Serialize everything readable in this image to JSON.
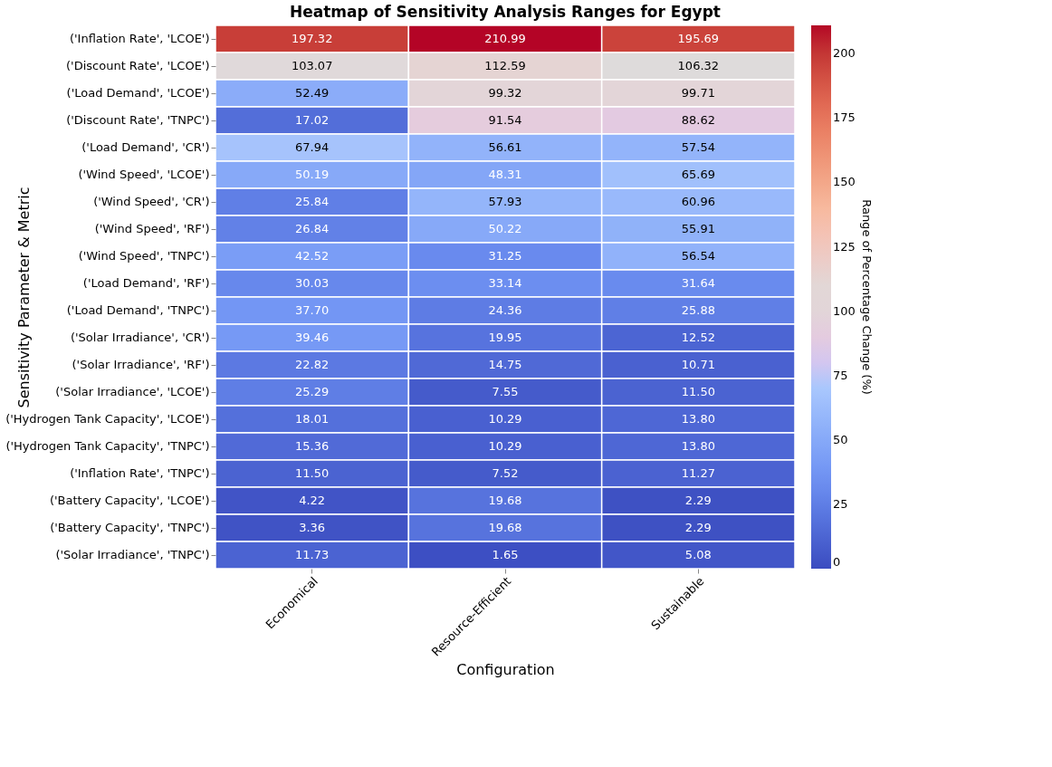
{
  "chart_data": {
    "type": "heatmap",
    "title": "Heatmap of Sensitivity Analysis Ranges for Egypt",
    "xlabel": "Configuration",
    "ylabel": "Sensitivity Parameter & Metric",
    "clabel": "Range of Percentage Change (%)",
    "categories": [
      "Economical",
      "Resource-Efficient",
      "Sustainable"
    ],
    "y_categories": [
      "('Inflation Rate', 'LCOE')",
      "('Discount Rate', 'LCOE')",
      "('Load Demand', 'LCOE')",
      "('Discount Rate', 'TNPC')",
      "('Load Demand', 'CR')",
      "('Wind Speed', 'LCOE')",
      "('Wind Speed', 'CR')",
      "('Wind Speed', 'RF')",
      "('Wind Speed', 'TNPC')",
      "('Load Demand', 'RF')",
      "('Load Demand', 'TNPC')",
      "('Solar Irradiance', 'CR')",
      "('Solar Irradiance', 'RF')",
      "('Solar Irradiance', 'LCOE')",
      "('Hydrogen Tank Capacity', 'LCOE')",
      "('Hydrogen Tank Capacity', 'TNPC')",
      "('Inflation Rate', 'TNPC')",
      "('Battery Capacity', 'LCOE')",
      "('Battery Capacity', 'TNPC')",
      "('Solar Irradiance', 'TNPC')"
    ],
    "cells": [
      [
        197.32,
        210.99,
        195.69
      ],
      [
        103.07,
        112.59,
        106.32
      ],
      [
        52.49,
        99.32,
        99.71
      ],
      [
        17.02,
        91.54,
        88.62
      ],
      [
        67.94,
        56.61,
        57.54
      ],
      [
        50.19,
        48.31,
        65.69
      ],
      [
        25.84,
        57.93,
        60.96
      ],
      [
        26.84,
        50.22,
        55.91
      ],
      [
        42.52,
        31.25,
        56.54
      ],
      [
        30.03,
        33.14,
        31.64
      ],
      [
        37.7,
        24.36,
        25.88
      ],
      [
        39.46,
        19.95,
        12.52
      ],
      [
        22.82,
        14.75,
        10.71
      ],
      [
        25.29,
        7.55,
        11.5
      ],
      [
        18.01,
        10.29,
        13.8
      ],
      [
        15.36,
        10.29,
        13.8
      ],
      [
        11.5,
        7.52,
        11.27
      ],
      [
        4.22,
        19.68,
        2.29
      ],
      [
        3.36,
        19.68,
        2.29
      ],
      [
        11.73,
        1.65,
        5.08
      ]
    ],
    "cell_labels": [
      [
        "197.32",
        "210.99",
        "195.69"
      ],
      [
        "103.07",
        "112.59",
        "106.32"
      ],
      [
        "52.49",
        "99.32",
        "99.71"
      ],
      [
        "17.02",
        "91.54",
        "88.62"
      ],
      [
        "67.94",
        "56.61",
        "57.54"
      ],
      [
        "50.19",
        "48.31",
        "65.69"
      ],
      [
        "25.84",
        "57.93",
        "60.96"
      ],
      [
        "26.84",
        "50.22",
        "55.91"
      ],
      [
        "42.52",
        "31.25",
        "56.54"
      ],
      [
        "30.03",
        "33.14",
        "31.64"
      ],
      [
        "37.70",
        "24.36",
        "25.88"
      ],
      [
        "39.46",
        "19.95",
        "12.52"
      ],
      [
        "22.82",
        "14.75",
        "10.71"
      ],
      [
        "25.29",
        "7.55",
        "11.50"
      ],
      [
        "18.01",
        "10.29",
        "13.80"
      ],
      [
        "15.36",
        "10.29",
        "13.80"
      ],
      [
        "11.50",
        "7.52",
        "11.27"
      ],
      [
        "4.22",
        "19.68",
        "2.29"
      ],
      [
        "3.36",
        "19.68",
        "2.29"
      ],
      [
        "11.73",
        "1.65",
        "5.08"
      ]
    ],
    "clim": [
      0,
      211
    ],
    "cticks": [
      0,
      25,
      50,
      75,
      100,
      125,
      150,
      175,
      200
    ]
  }
}
